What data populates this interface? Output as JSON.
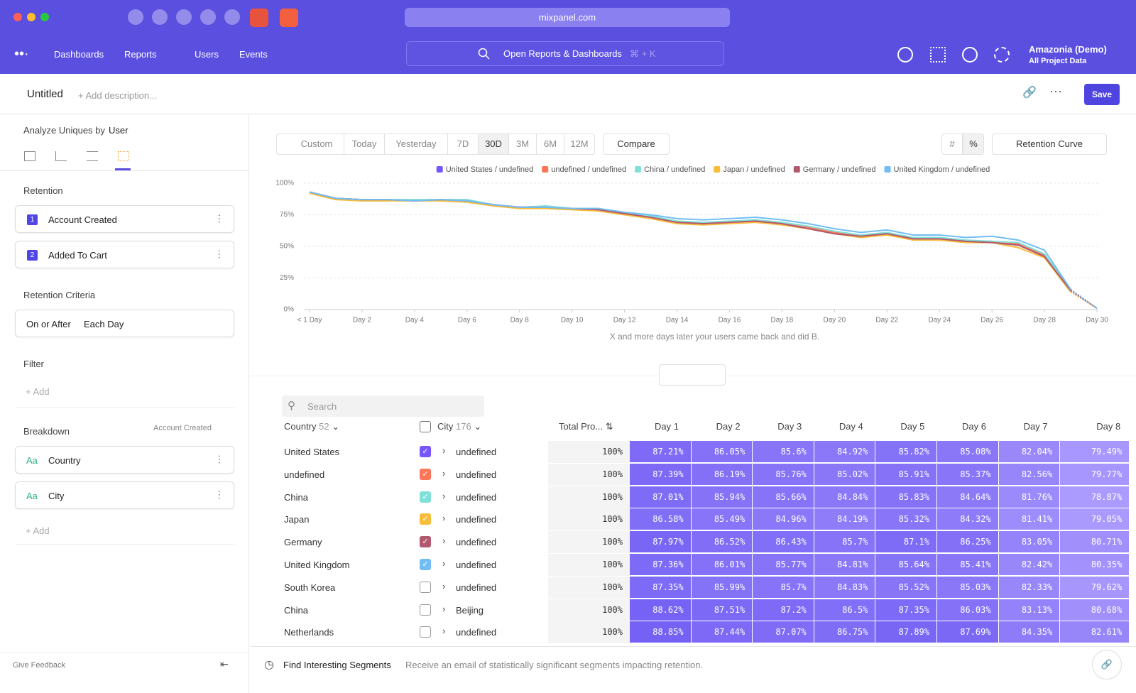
{
  "browser": {
    "url": "mixpanel.com"
  },
  "nav": {
    "items": [
      "Dashboards",
      "Reports",
      "Users",
      "Events"
    ],
    "search": "Open Reports & Dashboards",
    "shortcut": "⌘ + K",
    "project": "Amazonia (Demo)",
    "project_sub": "All Project Data"
  },
  "header": {
    "title": "Untitled",
    "description": "+ Add description...",
    "save": "Save"
  },
  "sidebar": {
    "analyze_label": "Analyze Uniques by",
    "analyze_value": "User",
    "retention_label": "Retention",
    "steps": [
      {
        "number": "1",
        "name": "Account Created"
      },
      {
        "number": "2",
        "name": "Added To Cart"
      }
    ],
    "criteria_label": "Retention Criteria",
    "criteria": [
      "On or After",
      "Each Day"
    ],
    "filter_label": "Filter",
    "filter_add": "+ Add",
    "breakdown_label": "Breakdown",
    "breakdown_event": "Account Created",
    "breakdowns": [
      {
        "icon": "Aa",
        "name": "Country"
      },
      {
        "icon": "Aa",
        "name": "City"
      }
    ],
    "breakdown_add": "+ Add",
    "feedback": "Give Feedback"
  },
  "toolbar": {
    "date_ranges": [
      "Custom",
      "Today",
      "Yesterday",
      "7D",
      "30D",
      "3M",
      "6M",
      "12M"
    ],
    "selected": "30D",
    "compare": "Compare",
    "view": "Retention Curve"
  },
  "chart_data": {
    "type": "line",
    "x_label": "X and more days later your users came back and did B.",
    "categories": [
      "< 1 Day",
      null,
      "Day 2",
      null,
      "Day 4",
      null,
      "Day 6",
      null,
      "Day 8",
      null,
      "Day 10",
      null,
      "Day 12",
      null,
      "Day 14",
      null,
      "Day 16",
      null,
      "Day 18",
      null,
      "Day 20",
      null,
      "Day 22",
      null,
      "Day 24",
      null,
      "Day 26",
      null,
      "Day 28",
      null,
      "Day 30"
    ],
    "ylim": [
      0,
      100
    ],
    "yticks": [
      {
        "value": 0,
        "label": "0%"
      },
      {
        "value": 25,
        "label": "25%"
      },
      {
        "value": 50,
        "label": "50%"
      },
      {
        "value": 75,
        "label": "75%"
      },
      {
        "value": 100,
        "label": "100%"
      }
    ],
    "grid": true,
    "series": [
      {
        "name": "United States / undefined",
        "color": "#7856ff",
        "values": [
          93,
          88,
          87,
          87,
          86,
          87,
          86,
          83,
          81,
          81,
          80,
          79,
          76,
          73,
          69,
          68,
          69,
          70,
          68,
          65,
          61,
          58,
          60,
          56,
          56,
          54,
          54,
          51,
          44,
          15,
          1
        ]
      },
      {
        "name": "undefined / undefined",
        "color": "#ff7557",
        "values": [
          93,
          88,
          87,
          87,
          86,
          87,
          86,
          83,
          81,
          81,
          80,
          79,
          76,
          73,
          69,
          68,
          69,
          70,
          68,
          65,
          61,
          58,
          60,
          57,
          57,
          54,
          54,
          52,
          43,
          16,
          1
        ]
      },
      {
        "name": "China / undefined",
        "color": "#80e1d9",
        "values": [
          93,
          88,
          87,
          87,
          87,
          87,
          87,
          83,
          81,
          82,
          80,
          80,
          77,
          74,
          70,
          69,
          70,
          71,
          69,
          66,
          62,
          59,
          61,
          57,
          57,
          55,
          54,
          53,
          44,
          16,
          1
        ]
      },
      {
        "name": "Japan / undefined",
        "color": "#f8bc3b",
        "values": [
          92,
          87,
          86,
          86,
          86,
          86,
          85,
          82,
          80,
          80,
          79,
          78,
          75,
          72,
          68,
          67,
          68,
          69,
          67,
          64,
          60,
          57,
          59,
          55,
          55,
          53,
          53,
          49,
          41,
          14,
          1
        ]
      },
      {
        "name": "Germany / undefined",
        "color": "#b2596e",
        "values": [
          93,
          88,
          87,
          87,
          86,
          87,
          86,
          83,
          81,
          81,
          80,
          79,
          76,
          73,
          69,
          68,
          69,
          70,
          68,
          64,
          60,
          58,
          60,
          56,
          56,
          54,
          53,
          51,
          42,
          15,
          1
        ]
      },
      {
        "name": "United Kingdom / undefined",
        "color": "#72bef4",
        "values": [
          93,
          88,
          87,
          87,
          86,
          87,
          86,
          83,
          81,
          81,
          80,
          80,
          77,
          75,
          72,
          71,
          72,
          73,
          71,
          68,
          64,
          61,
          63,
          59,
          59,
          57,
          58,
          55,
          47,
          16,
          1
        ]
      }
    ]
  },
  "table": {
    "search_placeholder": "Search",
    "columns": {
      "country": "Country",
      "country_count": 52,
      "city": "City",
      "city_count": 176,
      "total": "Total Pro...",
      "days": [
        "Day 1",
        "Day 2",
        "Day 3",
        "Day 4",
        "Day 5",
        "Day 6",
        "Day 7",
        "Day 8"
      ]
    },
    "rows": [
      {
        "country": "United States",
        "city": "undefined",
        "checked": true,
        "total": "100%",
        "days": [
          "87.21%",
          "86.05%",
          "85.6%",
          "84.92%",
          "85.82%",
          "85.08%",
          "82.04%",
          "79.49%"
        ]
      },
      {
        "country": "undefined",
        "city": "undefined",
        "checked": true,
        "total": "100%",
        "days": [
          "87.39%",
          "86.19%",
          "85.76%",
          "85.02%",
          "85.91%",
          "85.37%",
          "82.56%",
          "79.77%"
        ]
      },
      {
        "country": "China",
        "city": "undefined",
        "checked": true,
        "total": "100%",
        "days": [
          "87.01%",
          "85.94%",
          "85.66%",
          "84.84%",
          "85.83%",
          "84.64%",
          "81.76%",
          "78.87%"
        ]
      },
      {
        "country": "Japan",
        "city": "undefined",
        "checked": true,
        "total": "100%",
        "days": [
          "86.58%",
          "85.49%",
          "84.96%",
          "84.19%",
          "85.32%",
          "84.32%",
          "81.41%",
          "79.05%"
        ]
      },
      {
        "country": "Germany",
        "city": "undefined",
        "checked": true,
        "total": "100%",
        "days": [
          "87.97%",
          "86.52%",
          "86.43%",
          "85.7%",
          "87.1%",
          "86.25%",
          "83.05%",
          "80.71%"
        ]
      },
      {
        "country": "United Kingdom",
        "city": "undefined",
        "checked": true,
        "total": "100%",
        "days": [
          "87.36%",
          "86.01%",
          "85.77%",
          "84.81%",
          "85.64%",
          "85.41%",
          "82.42%",
          "80.35%"
        ]
      },
      {
        "country": "South Korea",
        "city": "undefined",
        "checked": false,
        "total": "100%",
        "days": [
          "87.35%",
          "85.99%",
          "85.7%",
          "84.83%",
          "85.52%",
          "85.03%",
          "82.33%",
          "79.62%"
        ]
      },
      {
        "country": "China",
        "city": "Beijing",
        "checked": false,
        "total": "100%",
        "days": [
          "88.62%",
          "87.51%",
          "87.2%",
          "86.5%",
          "87.35%",
          "86.03%",
          "83.13%",
          "80.68%"
        ]
      },
      {
        "country": "Netherlands",
        "city": "undefined",
        "checked": false,
        "total": "100%",
        "days": [
          "88.85%",
          "87.44%",
          "87.07%",
          "86.75%",
          "87.89%",
          "87.69%",
          "84.35%",
          "82.61%"
        ]
      }
    ]
  },
  "footer": {
    "title": "Find Interesting Segments",
    "text": "Receive an email of statistically significant segments impacting retention."
  }
}
